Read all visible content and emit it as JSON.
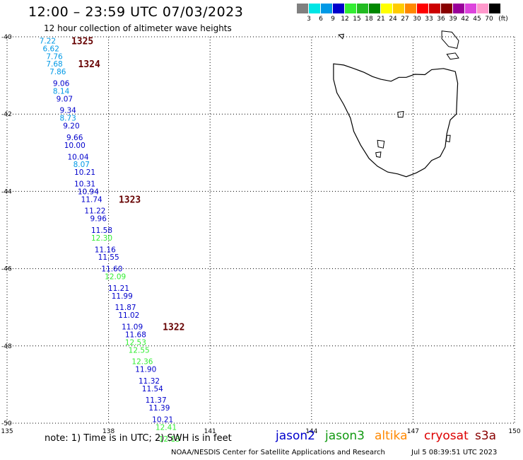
{
  "header": {
    "title": "12:00 – 23:59 UTC 07/03/2023",
    "subtitle": "12 hour collection of altimeter wave heights"
  },
  "legend": {
    "unit": "(ft)",
    "bins": [
      {
        "label": "3",
        "color": "#808080"
      },
      {
        "label": "6",
        "color": "#00e5e5"
      },
      {
        "label": "9",
        "color": "#0099e6"
      },
      {
        "label": "12",
        "color": "#0000cc"
      },
      {
        "label": "15",
        "color": "#33ee33"
      },
      {
        "label": "18",
        "color": "#22bb22"
      },
      {
        "label": "21",
        "color": "#008800"
      },
      {
        "label": "24",
        "color": "#ffff00"
      },
      {
        "label": "27",
        "color": "#ffcc00"
      },
      {
        "label": "30",
        "color": "#ff8800"
      },
      {
        "label": "33",
        "color": "#ff0000"
      },
      {
        "label": "36",
        "color": "#cc0000"
      },
      {
        "label": "39",
        "color": "#880000"
      },
      {
        "label": "42",
        "color": "#990099"
      },
      {
        "label": "45",
        "color": "#dd44dd"
      },
      {
        "label": "70",
        "color": "#ff99cc"
      },
      {
        "label": "",
        "color": "#000000"
      }
    ]
  },
  "map": {
    "lon_range": [
      135,
      150
    ],
    "lat_range": [
      -50,
      -40
    ],
    "lon_ticks": [
      "135",
      "138",
      "141",
      "144",
      "147",
      "150"
    ],
    "lat_ticks": [
      "-40",
      "-42",
      "-44",
      "-46",
      "-48",
      "-50"
    ],
    "grid": "dotted",
    "land": "Tasmania",
    "orbit_labels": [
      {
        "text": "1325",
        "lon": 136.9,
        "lat": -40.1
      },
      {
        "text": "1324",
        "lon": 137.1,
        "lat": -40.7
      },
      {
        "text": "1323",
        "lon": 138.3,
        "lat": -44.2
      },
      {
        "text": "1322",
        "lon": 139.6,
        "lat": -47.5
      }
    ],
    "observations": [
      {
        "lat": -40.1,
        "lon": 136.2,
        "swh": "7.22",
        "sat": "jason2",
        "color": "#0099e6"
      },
      {
        "lat": -40.3,
        "lon": 136.3,
        "swh": "6.62",
        "sat": "jason2",
        "color": "#0099e6"
      },
      {
        "lat": -40.5,
        "lon": 136.4,
        "swh": "7.76",
        "sat": "jason2",
        "color": "#0099e6"
      },
      {
        "lat": -40.7,
        "lon": 136.4,
        "swh": "7.68",
        "sat": "jason2",
        "color": "#0099e6"
      },
      {
        "lat": -40.9,
        "lon": 136.5,
        "swh": "7.86",
        "sat": "jason2",
        "color": "#0099e6"
      },
      {
        "lat": -41.2,
        "lon": 136.6,
        "swh": "9.06",
        "sat": "jason2",
        "color": "#0000cc"
      },
      {
        "lat": -41.4,
        "lon": 136.6,
        "swh": "8.14",
        "sat": "jason2",
        "color": "#0099e6"
      },
      {
        "lat": -41.6,
        "lon": 136.7,
        "swh": "9.07",
        "sat": "jason2",
        "color": "#0000cc"
      },
      {
        "lat": -41.9,
        "lon": 136.8,
        "swh": "9.34",
        "sat": "jason2",
        "color": "#0000cc"
      },
      {
        "lat": -42.1,
        "lon": 136.8,
        "swh": "8.73",
        "sat": "jason2",
        "color": "#0099e6"
      },
      {
        "lat": -42.3,
        "lon": 136.9,
        "swh": "9.20",
        "sat": "jason2",
        "color": "#0000cc"
      },
      {
        "lat": -42.6,
        "lon": 137.0,
        "swh": "9.66",
        "sat": "jason2",
        "color": "#0000cc"
      },
      {
        "lat": -42.8,
        "lon": 137.0,
        "swh": "10.00",
        "sat": "jason2",
        "color": "#0000cc"
      },
      {
        "lat": -43.1,
        "lon": 137.1,
        "swh": "10.04",
        "sat": "jason2",
        "color": "#0000cc"
      },
      {
        "lat": -43.3,
        "lon": 137.2,
        "swh": "8.07",
        "sat": "jason2",
        "color": "#0099e6"
      },
      {
        "lat": -43.5,
        "lon": 137.3,
        "swh": "10.21",
        "sat": "jason2",
        "color": "#0000cc"
      },
      {
        "lat": -43.8,
        "lon": 137.3,
        "swh": "10.31",
        "sat": "jason2",
        "color": "#0000cc"
      },
      {
        "lat": -44.0,
        "lon": 137.4,
        "swh": "10.94",
        "sat": "jason2",
        "color": "#0000cc"
      },
      {
        "lat": -44.2,
        "lon": 137.5,
        "swh": "11.74",
        "sat": "jason2",
        "color": "#0000cc"
      },
      {
        "lat": -44.5,
        "lon": 137.6,
        "swh": "11.22",
        "sat": "jason2",
        "color": "#0000cc"
      },
      {
        "lat": -44.7,
        "lon": 137.7,
        "swh": "9.96",
        "sat": "jason2",
        "color": "#0000cc"
      },
      {
        "lat": -45.0,
        "lon": 137.8,
        "swh": "11.58",
        "sat": "jason2",
        "color": "#0000cc"
      },
      {
        "lat": -45.2,
        "lon": 137.8,
        "swh": "12.30",
        "sat": "jason3",
        "color": "#33ee33"
      },
      {
        "lat": -45.5,
        "lon": 137.9,
        "swh": "11.16",
        "sat": "jason2",
        "color": "#0000cc"
      },
      {
        "lat": -45.7,
        "lon": 138.0,
        "swh": "11.55",
        "sat": "jason2",
        "color": "#0000cc"
      },
      {
        "lat": -46.0,
        "lon": 138.1,
        "swh": "11.60",
        "sat": "jason2",
        "color": "#0000cc"
      },
      {
        "lat": -46.2,
        "lon": 138.2,
        "swh": "12.09",
        "sat": "jason3",
        "color": "#33ee33"
      },
      {
        "lat": -46.5,
        "lon": 138.3,
        "swh": "11.21",
        "sat": "jason2",
        "color": "#0000cc"
      },
      {
        "lat": -46.7,
        "lon": 138.4,
        "swh": "11.99",
        "sat": "jason2",
        "color": "#0000cc"
      },
      {
        "lat": -47.0,
        "lon": 138.5,
        "swh": "11.87",
        "sat": "jason2",
        "color": "#0000cc"
      },
      {
        "lat": -47.2,
        "lon": 138.6,
        "swh": "11.02",
        "sat": "jason2",
        "color": "#0000cc"
      },
      {
        "lat": -47.5,
        "lon": 138.7,
        "swh": "11.09",
        "sat": "jason2",
        "color": "#0000cc"
      },
      {
        "lat": -47.7,
        "lon": 138.8,
        "swh": "11.68",
        "sat": "jason2",
        "color": "#0000cc"
      },
      {
        "lat": -47.9,
        "lon": 138.8,
        "swh": "12.53",
        "sat": "jason3",
        "color": "#33ee33"
      },
      {
        "lat": -48.1,
        "lon": 138.9,
        "swh": "12.55",
        "sat": "jason3",
        "color": "#33ee33"
      },
      {
        "lat": -48.4,
        "lon": 139.0,
        "swh": "12.36",
        "sat": "jason3",
        "color": "#33ee33"
      },
      {
        "lat": -48.6,
        "lon": 139.1,
        "swh": "11.90",
        "sat": "jason2",
        "color": "#0000cc"
      },
      {
        "lat": -48.9,
        "lon": 139.2,
        "swh": "11.32",
        "sat": "jason2",
        "color": "#0000cc"
      },
      {
        "lat": -49.1,
        "lon": 139.3,
        "swh": "11.54",
        "sat": "jason2",
        "color": "#0000cc"
      },
      {
        "lat": -49.4,
        "lon": 139.4,
        "swh": "11.37",
        "sat": "jason2",
        "color": "#0000cc"
      },
      {
        "lat": -49.6,
        "lon": 139.5,
        "swh": "11.39",
        "sat": "jason2",
        "color": "#0000cc"
      },
      {
        "lat": -49.9,
        "lon": 139.6,
        "swh": "10.21",
        "sat": "jason2",
        "color": "#0000cc"
      },
      {
        "lat": -50.1,
        "lon": 139.7,
        "swh": "12.41",
        "sat": "jason3",
        "color": "#33ee33"
      },
      {
        "lat": -50.4,
        "lon": 139.8,
        "swh": "12.13",
        "sat": "jason3",
        "color": "#33ee33"
      }
    ]
  },
  "footer": {
    "note": "note:  1) Time is in UTC; 2) SWH is in feet",
    "satellites": [
      {
        "name": "jason2",
        "color": "#0000cc"
      },
      {
        "name": "jason3",
        "color": "#119911"
      },
      {
        "name": "altika",
        "color": "#ff8800"
      },
      {
        "name": "cryosat",
        "color": "#dd0000"
      },
      {
        "name": "s3a",
        "color": "#880000"
      }
    ],
    "credit": "NOAA/NESDIS Center for Satellite Applications and Research",
    "generated": "Jul  5 08:39:51 UTC 2023"
  }
}
